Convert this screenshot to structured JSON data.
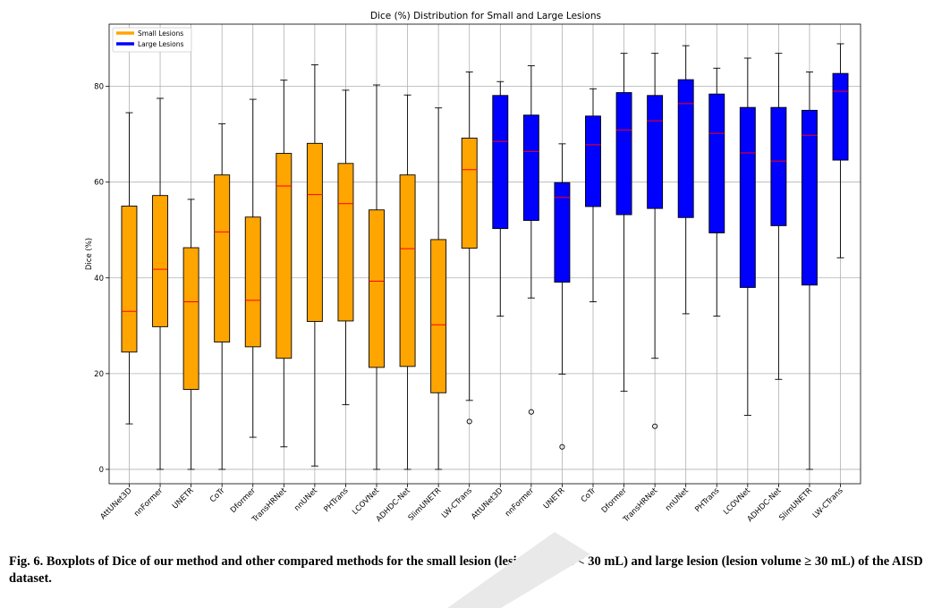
{
  "chart_data": {
    "type": "boxplot",
    "title": "Dice (%) Distribution for Small and Large Lesions",
    "ylabel": "Dice (%)",
    "xlabel": "",
    "ylim": [
      -3,
      93
    ],
    "yticks": [
      0,
      20,
      40,
      60,
      80
    ],
    "grid": true,
    "legend": {
      "position": "top-left",
      "entries": [
        {
          "label": "Small Lesions",
          "color": "#ffa500"
        },
        {
          "label": "Large Lesions",
          "color": "#0000ff"
        }
      ]
    },
    "median_color": "#ff0000",
    "categories": [
      "AttUNet3D",
      "nnFormer",
      "UNETR",
      "CoTr",
      "Dformer",
      "TransHRNet",
      "nnUNet",
      "PHTrans",
      "LCOVNet",
      "ADHDC-Net",
      "SlimUNETR",
      "LW-CTrans",
      "AttUNet3D",
      "nnFormer",
      "UNETR",
      "CoTr",
      "Dformer",
      "TransHRNet",
      "nnUNet",
      "PHTrans",
      "LCOVNet",
      "ADHDC-Net",
      "SlimUNETR",
      "LW-CTrans"
    ],
    "series": [
      {
        "name": "Small Lesions",
        "color": "#ffa500",
        "boxes": [
          {
            "label": "AttUNet3D",
            "whislo": 9.5,
            "q1": 24.5,
            "med": 33.0,
            "q3": 55.0,
            "whishi": 74.5,
            "fliers": []
          },
          {
            "label": "nnFormer",
            "whislo": 0.0,
            "q1": 29.8,
            "med": 41.8,
            "q3": 57.2,
            "whishi": 77.5,
            "fliers": []
          },
          {
            "label": "UNETR",
            "whislo": 0.0,
            "q1": 16.7,
            "med": 35.0,
            "q3": 46.3,
            "whishi": 56.4,
            "fliers": []
          },
          {
            "label": "CoTr",
            "whislo": 0.0,
            "q1": 26.6,
            "med": 49.6,
            "q3": 61.5,
            "whishi": 72.2,
            "fliers": []
          },
          {
            "label": "Dformer",
            "whislo": 6.7,
            "q1": 25.6,
            "med": 35.3,
            "q3": 52.7,
            "whishi": 77.3,
            "fliers": []
          },
          {
            "label": "TransHRNet",
            "whislo": 4.7,
            "q1": 23.2,
            "med": 59.2,
            "q3": 66.0,
            "whishi": 81.3,
            "fliers": []
          },
          {
            "label": "nnUNet",
            "whislo": 0.7,
            "q1": 30.9,
            "med": 57.4,
            "q3": 68.1,
            "whishi": 84.5,
            "fliers": []
          },
          {
            "label": "PHTrans",
            "whislo": 13.5,
            "q1": 31.0,
            "med": 55.5,
            "q3": 63.9,
            "whishi": 79.2,
            "fliers": []
          },
          {
            "label": "LCOVNet",
            "whislo": 0.0,
            "q1": 21.3,
            "med": 39.3,
            "q3": 54.2,
            "whishi": 80.3,
            "fliers": []
          },
          {
            "label": "ADHDC-Net",
            "whislo": 0.0,
            "q1": 21.5,
            "med": 46.1,
            "q3": 61.5,
            "whishi": 78.2,
            "fliers": []
          },
          {
            "label": "SlimUNETR",
            "whislo": 0.0,
            "q1": 16.0,
            "med": 30.2,
            "q3": 48.0,
            "whishi": 75.5,
            "fliers": []
          },
          {
            "label": "LW-CTrans",
            "whislo": 14.4,
            "q1": 46.2,
            "med": 62.6,
            "q3": 69.2,
            "whishi": 83.0,
            "fliers": [
              10.0
            ]
          }
        ]
      },
      {
        "name": "Large Lesions",
        "color": "#0000ff",
        "boxes": [
          {
            "label": "AttUNet3D",
            "whislo": 32.0,
            "q1": 50.3,
            "med": 68.5,
            "q3": 78.1,
            "whishi": 81.0,
            "fliers": []
          },
          {
            "label": "nnFormer",
            "whislo": 35.8,
            "q1": 52.0,
            "med": 66.4,
            "q3": 74.0,
            "whishi": 84.3,
            "fliers": [
              12.0
            ]
          },
          {
            "label": "UNETR",
            "whislo": 19.9,
            "q1": 39.1,
            "med": 56.8,
            "q3": 59.9,
            "whishi": 68.0,
            "fliers": [
              4.7
            ]
          },
          {
            "label": "CoTr",
            "whislo": 35.0,
            "q1": 54.9,
            "med": 67.8,
            "q3": 73.8,
            "whishi": 79.5,
            "fliers": []
          },
          {
            "label": "Dformer",
            "whislo": 16.3,
            "q1": 53.2,
            "med": 70.9,
            "q3": 78.7,
            "whishi": 86.9,
            "fliers": []
          },
          {
            "label": "TransHRNet",
            "whislo": 23.2,
            "q1": 54.5,
            "med": 72.8,
            "q3": 78.1,
            "whishi": 86.9,
            "fliers": [
              9.0
            ]
          },
          {
            "label": "nnUNet",
            "whislo": 32.5,
            "q1": 52.6,
            "med": 76.4,
            "q3": 81.4,
            "whishi": 88.5,
            "fliers": []
          },
          {
            "label": "PHTrans",
            "whislo": 32.0,
            "q1": 49.4,
            "med": 70.2,
            "q3": 78.4,
            "whishi": 83.8,
            "fliers": []
          },
          {
            "label": "LCOVNet",
            "whislo": 11.3,
            "q1": 38.0,
            "med": 66.1,
            "q3": 75.6,
            "whishi": 85.9,
            "fliers": []
          },
          {
            "label": "ADHDC-Net",
            "whislo": 18.8,
            "q1": 50.9,
            "med": 64.4,
            "q3": 75.6,
            "whishi": 86.9,
            "fliers": []
          },
          {
            "label": "SlimUNETR",
            "whislo": 0.0,
            "q1": 38.5,
            "med": 69.8,
            "q3": 75.0,
            "whishi": 83.0,
            "fliers": []
          },
          {
            "label": "LW-CTrans",
            "whislo": 44.2,
            "q1": 64.6,
            "med": 79.0,
            "q3": 82.7,
            "whishi": 88.9,
            "fliers": []
          }
        ]
      }
    ]
  },
  "caption": "Fig. 6. Boxplots of Dice of our method and other compared methods for the small lesion (lesion volume < 30 mL) and large lesion (lesion volume ≥ 30 mL) of the AISD dataset."
}
